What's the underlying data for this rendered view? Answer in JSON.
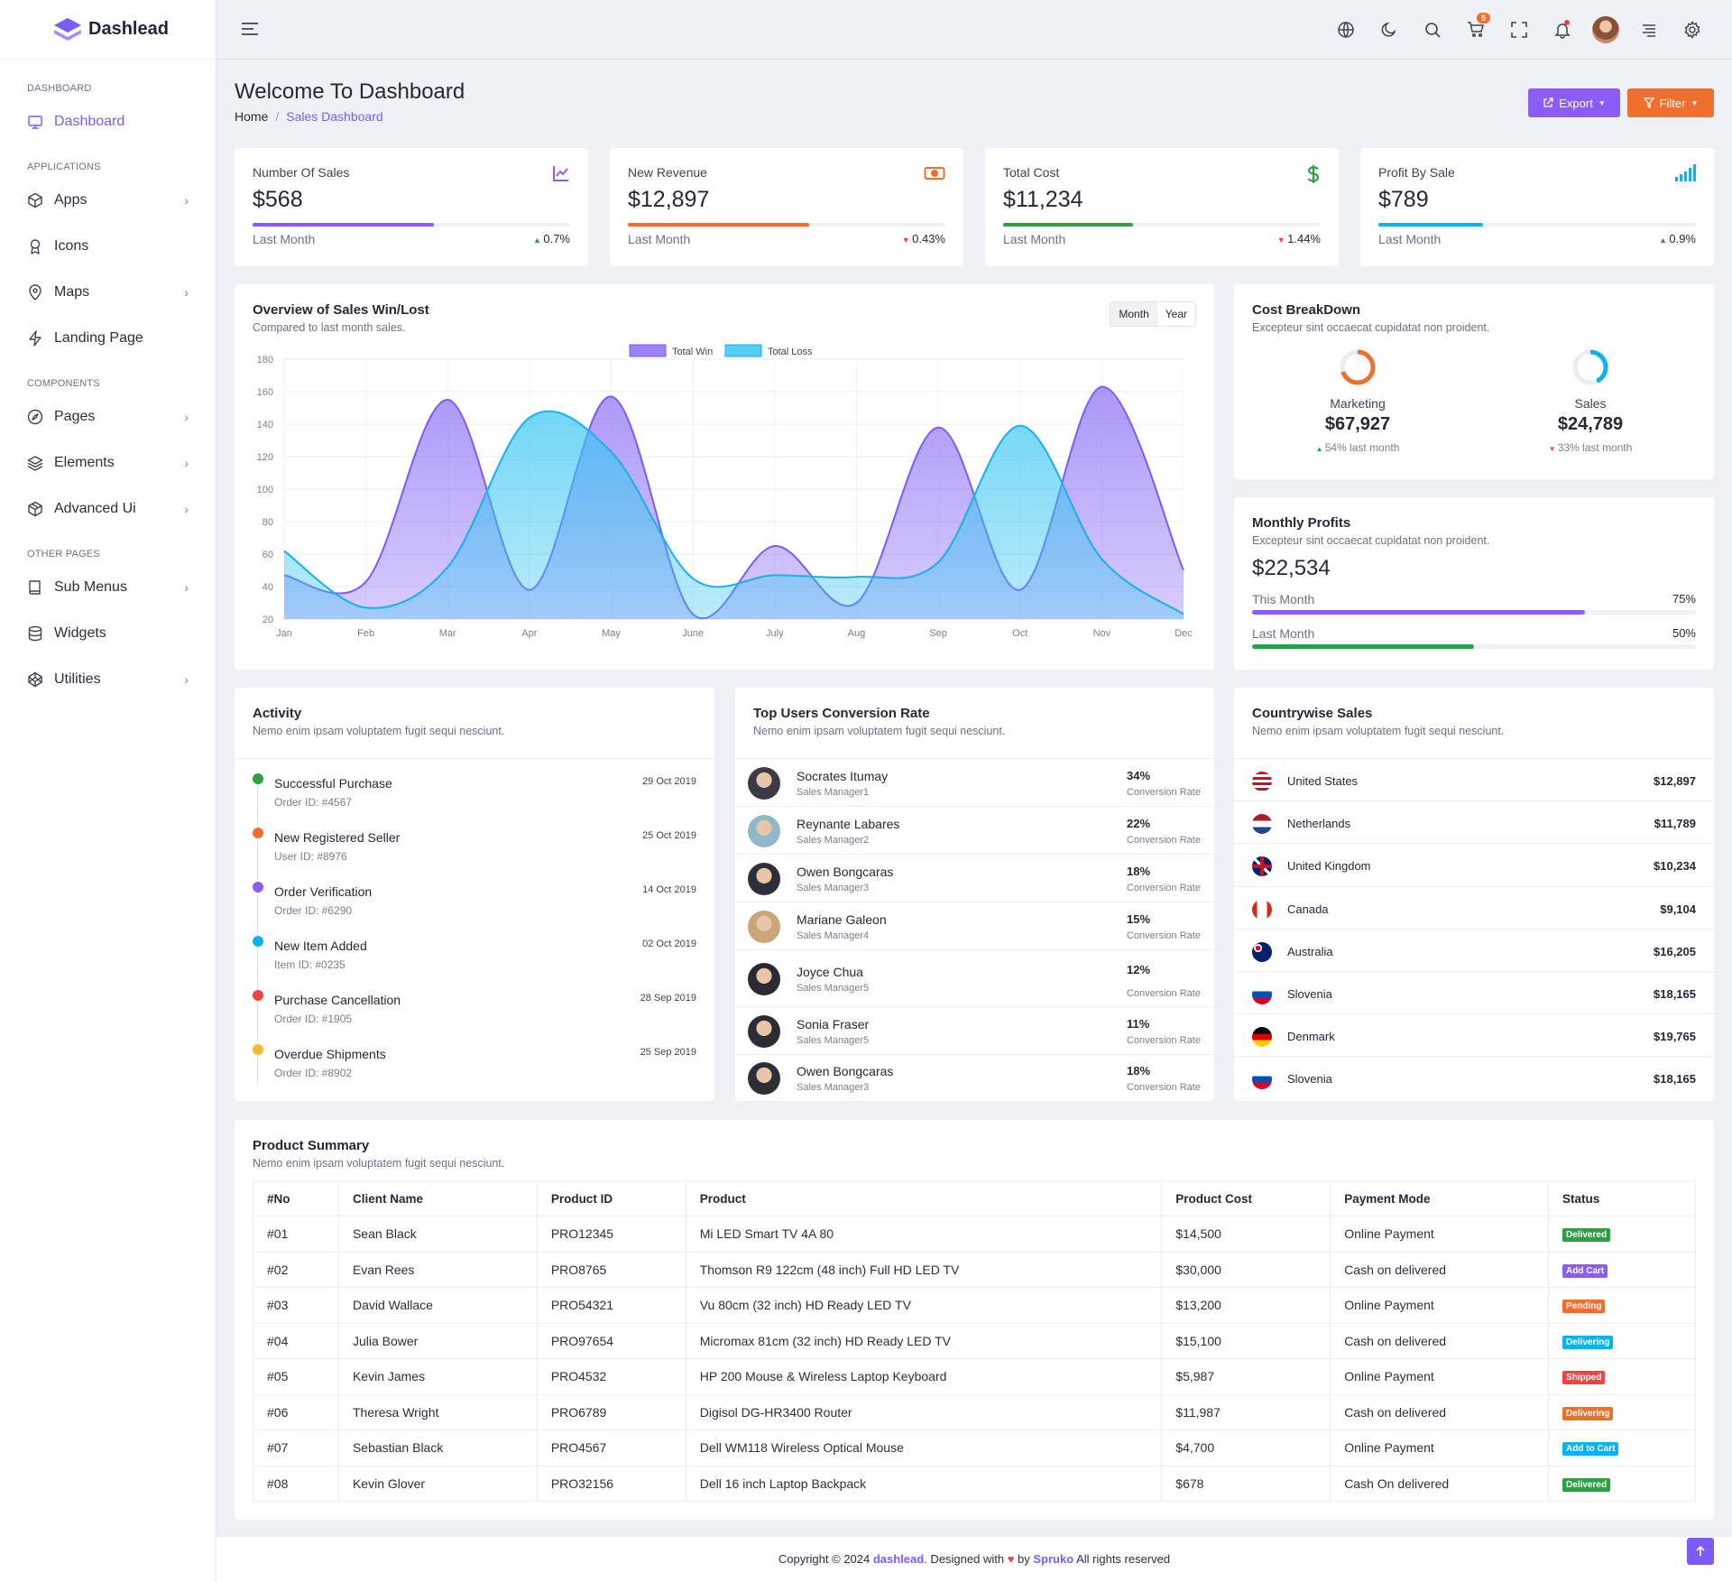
{
  "app": {
    "brand": "Dashlead"
  },
  "sidebar": {
    "sections": [
      {
        "title": "DASHBOARD",
        "items": [
          {
            "label": "Dashboard",
            "icon": "monitor-icon",
            "active": true
          }
        ]
      },
      {
        "title": "APPLICATIONS",
        "items": [
          {
            "label": "Apps",
            "icon": "cube-icon",
            "chevron": true
          },
          {
            "label": "Icons",
            "icon": "award-icon"
          },
          {
            "label": "Maps",
            "icon": "map-pin-icon",
            "chevron": true
          },
          {
            "label": "Landing Page",
            "icon": "bolt-icon"
          }
        ]
      },
      {
        "title": "COMPONENTS",
        "items": [
          {
            "label": "Pages",
            "icon": "compass-icon",
            "chevron": true
          },
          {
            "label": "Elements",
            "icon": "layers-icon",
            "chevron": true
          },
          {
            "label": "Advanced Ui",
            "icon": "box-icon",
            "chevron": true
          }
        ]
      },
      {
        "title": "OTHER PAGES",
        "items": [
          {
            "label": "Sub Menus",
            "icon": "book-icon",
            "chevron": true
          },
          {
            "label": "Widgets",
            "icon": "database-icon"
          },
          {
            "label": "Utilities",
            "icon": "codepen-icon",
            "chevron": true
          }
        ]
      }
    ]
  },
  "header": {
    "cart_count": "5"
  },
  "page": {
    "title": "Welcome To Dashboard",
    "breadcrumb": {
      "home": "Home",
      "current": "Sales Dashboard"
    },
    "export_label": "Export",
    "filter_label": "Filter"
  },
  "kpis": [
    {
      "title": "Number Of Sales",
      "value": "$568",
      "progress": 0.57,
      "period": "Last Month",
      "change": "0.7%",
      "trend": "up",
      "color": "#8b5cf6",
      "icon": "line-chart-icon"
    },
    {
      "title": "New Revenue",
      "value": "$12,897",
      "progress": 0.57,
      "period": "Last Month",
      "change": "0.43%",
      "trend": "down",
      "color": "#f06f2d",
      "icon": "money-icon"
    },
    {
      "title": "Total Cost",
      "value": "$11,234",
      "progress": 0.41,
      "period": "Last Month",
      "change": "1.44%",
      "trend": "down",
      "color": "#2ea043",
      "icon": "dollar-icon"
    },
    {
      "title": "Profit By Sale",
      "value": "$789",
      "progress": 0.33,
      "period": "Last Month",
      "change": "0.9%",
      "trend": "up",
      "color": "#0ab3f0",
      "icon": "signal-icon"
    }
  ],
  "sales_chart": {
    "title": "Overview of Sales Win/Lost",
    "subtitle": "Compared to last month sales.",
    "tab_month": "Month",
    "tab_year": "Year"
  },
  "chart_data": {
    "type": "area",
    "x": [
      "Jan",
      "Feb",
      "Mar",
      "Apr",
      "May",
      "June",
      "July",
      "Aug",
      "Sep",
      "Oct",
      "Nov",
      "Dec"
    ],
    "series": [
      {
        "name": "Total Win",
        "color": "#8b6cf6",
        "values": [
          47,
          43,
          155,
          38,
          157,
          23,
          65,
          30,
          138,
          38,
          163,
          50
        ]
      },
      {
        "name": "Total Loss",
        "color": "#38c6f2",
        "values": [
          62,
          27,
          52,
          144,
          123,
          45,
          47,
          46,
          55,
          139,
          57,
          23
        ]
      }
    ],
    "ylim": [
      20,
      180
    ],
    "yticks": [
      20,
      40,
      60,
      80,
      100,
      120,
      140,
      160,
      180
    ],
    "legend": "top",
    "grid": true
  },
  "cost_breakdown": {
    "title": "Cost BreakDown",
    "subtitle": "Excepteur sint occaecat cupidatat non proident.",
    "items": [
      {
        "label": "Marketing",
        "value": "$67,927",
        "change": "54% last month",
        "trend": "up",
        "color": "#f06f2d",
        "fraction": 0.54
      },
      {
        "label": "Sales",
        "value": "$24,789",
        "change": "33% last month",
        "trend": "down",
        "color": "#0ab3f0",
        "fraction": 0.33
      }
    ]
  },
  "monthly_profits": {
    "title": "Monthly Profits",
    "subtitle": "Excepteur sint occaecat cupidatat non proident.",
    "value": "$22,534",
    "rows": [
      {
        "label": "This Month",
        "pct": "75%",
        "fraction": 0.75,
        "color": "#8b5cf6"
      },
      {
        "label": "Last Month",
        "pct": "50%",
        "fraction": 0.5,
        "color": "#2ea043"
      }
    ]
  },
  "activity": {
    "title": "Activity",
    "subtitle": "Nemo enim ipsam voluptatem fugit sequi nesciunt.",
    "items": [
      {
        "name": "Successful Purchase",
        "sub": "Order ID: #4567",
        "date": "29 Oct 2019",
        "color": "#2ea043"
      },
      {
        "name": "New Registered Seller",
        "sub": "User ID: #8976",
        "date": "25 Oct 2019",
        "color": "#f06f2d"
      },
      {
        "name": "Order Verification",
        "sub": "Order ID: #6290",
        "date": "14 Oct 2019",
        "color": "#8b5cf6"
      },
      {
        "name": "New Item Added",
        "sub": "Item ID: #0235",
        "date": "02 Oct 2019",
        "color": "#0ab3f0"
      },
      {
        "name": "Purchase Cancellation",
        "sub": "Order ID: #1905",
        "date": "28 Sep 2019",
        "color": "#ef4444"
      },
      {
        "name": "Overdue Shipments",
        "sub": "Order ID: #8902",
        "date": "25 Sep 2019",
        "color": "#f5b82e"
      }
    ]
  },
  "top_users": {
    "title": "Top Users Conversion Rate",
    "subtitle": "Nemo enim ipsam voluptatem fugit sequi nesciunt.",
    "rate_label": "Conversion Rate",
    "users": [
      {
        "name": "Socrates Itumay",
        "role": "Sales Manager1",
        "pct": "34%"
      },
      {
        "name": "Reynante Labares",
        "role": "Sales Manager2",
        "pct": "22%"
      },
      {
        "name": "Owen Bongcaras",
        "role": "Sales Manager3",
        "pct": "18%"
      },
      {
        "name": "Mariane Galeon",
        "role": "Sales Manager4",
        "pct": "15%"
      },
      {
        "name": "Joyce Chua",
        "role": "Sales Manager5",
        "pct": "12%"
      },
      {
        "name": "Sonia Fraser",
        "role": "Sales Manager5",
        "pct": "11%"
      },
      {
        "name": "Owen Bongcaras",
        "role": "Sales Manager3",
        "pct": "18%"
      }
    ]
  },
  "countries": {
    "title": "Countrywise Sales",
    "subtitle": "Nemo enim ipsam voluptatem fugit sequi nesciunt.",
    "rows": [
      {
        "name": "United States",
        "amount": "$12,897",
        "flag": "us-flag-icon"
      },
      {
        "name": "Netherlands",
        "amount": "$11,789",
        "flag": "nl-flag-icon"
      },
      {
        "name": "United Kingdom",
        "amount": "$10,234",
        "flag": "uk-flag-icon"
      },
      {
        "name": "Canada",
        "amount": "$9,104",
        "flag": "ca-flag-icon"
      },
      {
        "name": "Australia",
        "amount": "$16,205",
        "flag": "au-flag-icon"
      },
      {
        "name": "Slovenia",
        "amount": "$18,165",
        "flag": "si-flag-icon"
      },
      {
        "name": "Denmark",
        "amount": "$19,765",
        "flag": "de-flag-icon"
      },
      {
        "name": "Slovenia",
        "amount": "$18,165",
        "flag": "si-flag-icon"
      }
    ]
  },
  "products": {
    "title": "Product Summary",
    "subtitle": "Nemo enim ipsam voluptatem fugit sequi nesciunt.",
    "columns": [
      "#No",
      "Client Name",
      "Product ID",
      "Product",
      "Product Cost",
      "Payment Mode",
      "Status"
    ],
    "rows": [
      {
        "no": "#01",
        "client": "Sean Black",
        "pid": "PRO12345",
        "product": "Mi LED Smart TV 4A 80",
        "cost": "$14,500",
        "mode": "Online Payment",
        "status": "Delivered",
        "status_color": "#2ea043"
      },
      {
        "no": "#02",
        "client": "Evan Rees",
        "pid": "PRO8765",
        "product": "Thomson R9 122cm (48 inch) Full HD LED TV",
        "cost": "$30,000",
        "mode": "Cash on delivered",
        "status": "Add Cart",
        "status_color": "#8b5cf6"
      },
      {
        "no": "#03",
        "client": "David Wallace",
        "pid": "PRO54321",
        "product": "Vu 80cm (32 inch) HD Ready LED TV",
        "cost": "$13,200",
        "mode": "Online Payment",
        "status": "Pending",
        "status_color": "#f06f2d"
      },
      {
        "no": "#04",
        "client": "Julia Bower",
        "pid": "PRO97654",
        "product": "Micromax 81cm (32 inch) HD Ready LED TV",
        "cost": "$15,100",
        "mode": "Cash on delivered",
        "status": "Delivering",
        "status_color": "#0ab3f0"
      },
      {
        "no": "#05",
        "client": "Kevin James",
        "pid": "PRO4532",
        "product": "HP 200 Mouse & Wireless Laptop Keyboard",
        "cost": "$5,987",
        "mode": "Online Payment",
        "status": "Shipped",
        "status_color": "#ef4444"
      },
      {
        "no": "#06",
        "client": "Theresa Wright",
        "pid": "PRO6789",
        "product": "Digisol DG-HR3400 Router",
        "cost": "$11,987",
        "mode": "Cash on delivered",
        "status": "Delivering",
        "status_color": "#f06f2d"
      },
      {
        "no": "#07",
        "client": "Sebastian Black",
        "pid": "PRO4567",
        "product": "Dell WM118 Wireless Optical Mouse",
        "cost": "$4,700",
        "mode": "Online Payment",
        "status": "Add to Cart",
        "status_color": "#0ab3f0"
      },
      {
        "no": "#08",
        "client": "Kevin Glover",
        "pid": "PRO32156",
        "product": "Dell 16 inch Laptop Backpack",
        "cost": "$678",
        "mode": "Cash On delivered",
        "status": "Delivered",
        "status_color": "#2ea043"
      }
    ]
  },
  "footer": {
    "prefix": "Copyright © 2024 ",
    "brand": "dashlead",
    "mid": ". Designed with ",
    "by": " by ",
    "author": "Spruko",
    "suffix": " All rights reserved"
  }
}
